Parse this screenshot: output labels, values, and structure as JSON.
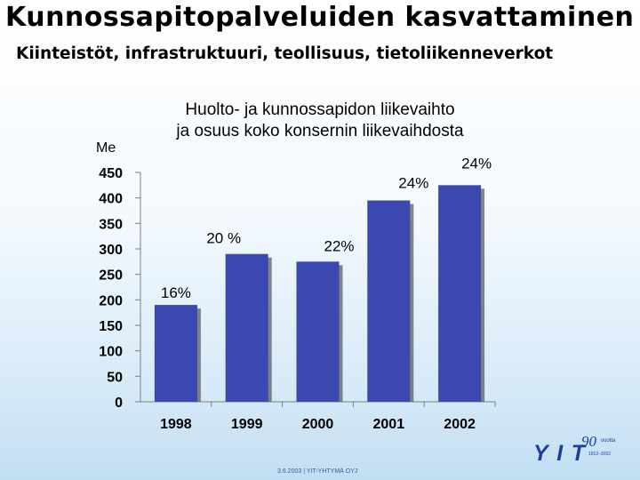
{
  "slide": {
    "title": "Kunnossapitopalveluiden kasvattaminen",
    "subtitle": "Kiinteistöt, infrastruktuuri, teollisuus, tietoliikenneverkot",
    "footer": "3.6.2003   |   YIT-YHTYMÄ OYJ",
    "logo_text": "YIT",
    "logo_badge": "90",
    "logo_badge_suffix": "vuotta",
    "logo_badge_years": "1912–2002"
  },
  "chart_data": {
    "type": "bar",
    "title": "Huolto- ja kunnossapidon liikevaihto ja osuus koko konsernin liikevaihdosta",
    "title_lines": [
      "Huolto- ja kunnossapidon liikevaihto",
      "ja osuus koko konsernin liikevaihdosta"
    ],
    "ylabel": "Me",
    "xlabel": "",
    "ylim": [
      0,
      450
    ],
    "yticks": [
      "0",
      "50",
      "100",
      "150",
      "200",
      "250",
      "300",
      "350",
      "400",
      "450"
    ],
    "categories": [
      "1998",
      "1999",
      "2000",
      "2001",
      "2002"
    ],
    "values": [
      190,
      290,
      275,
      395,
      425
    ],
    "data_labels": [
      "16%",
      "20 %",
      "22%",
      "24%",
      "24%"
    ],
    "grid": false,
    "colors": {
      "bar": "#3a48b0",
      "bar_shadow": "#5d5d5d",
      "axis": "#808080"
    }
  }
}
